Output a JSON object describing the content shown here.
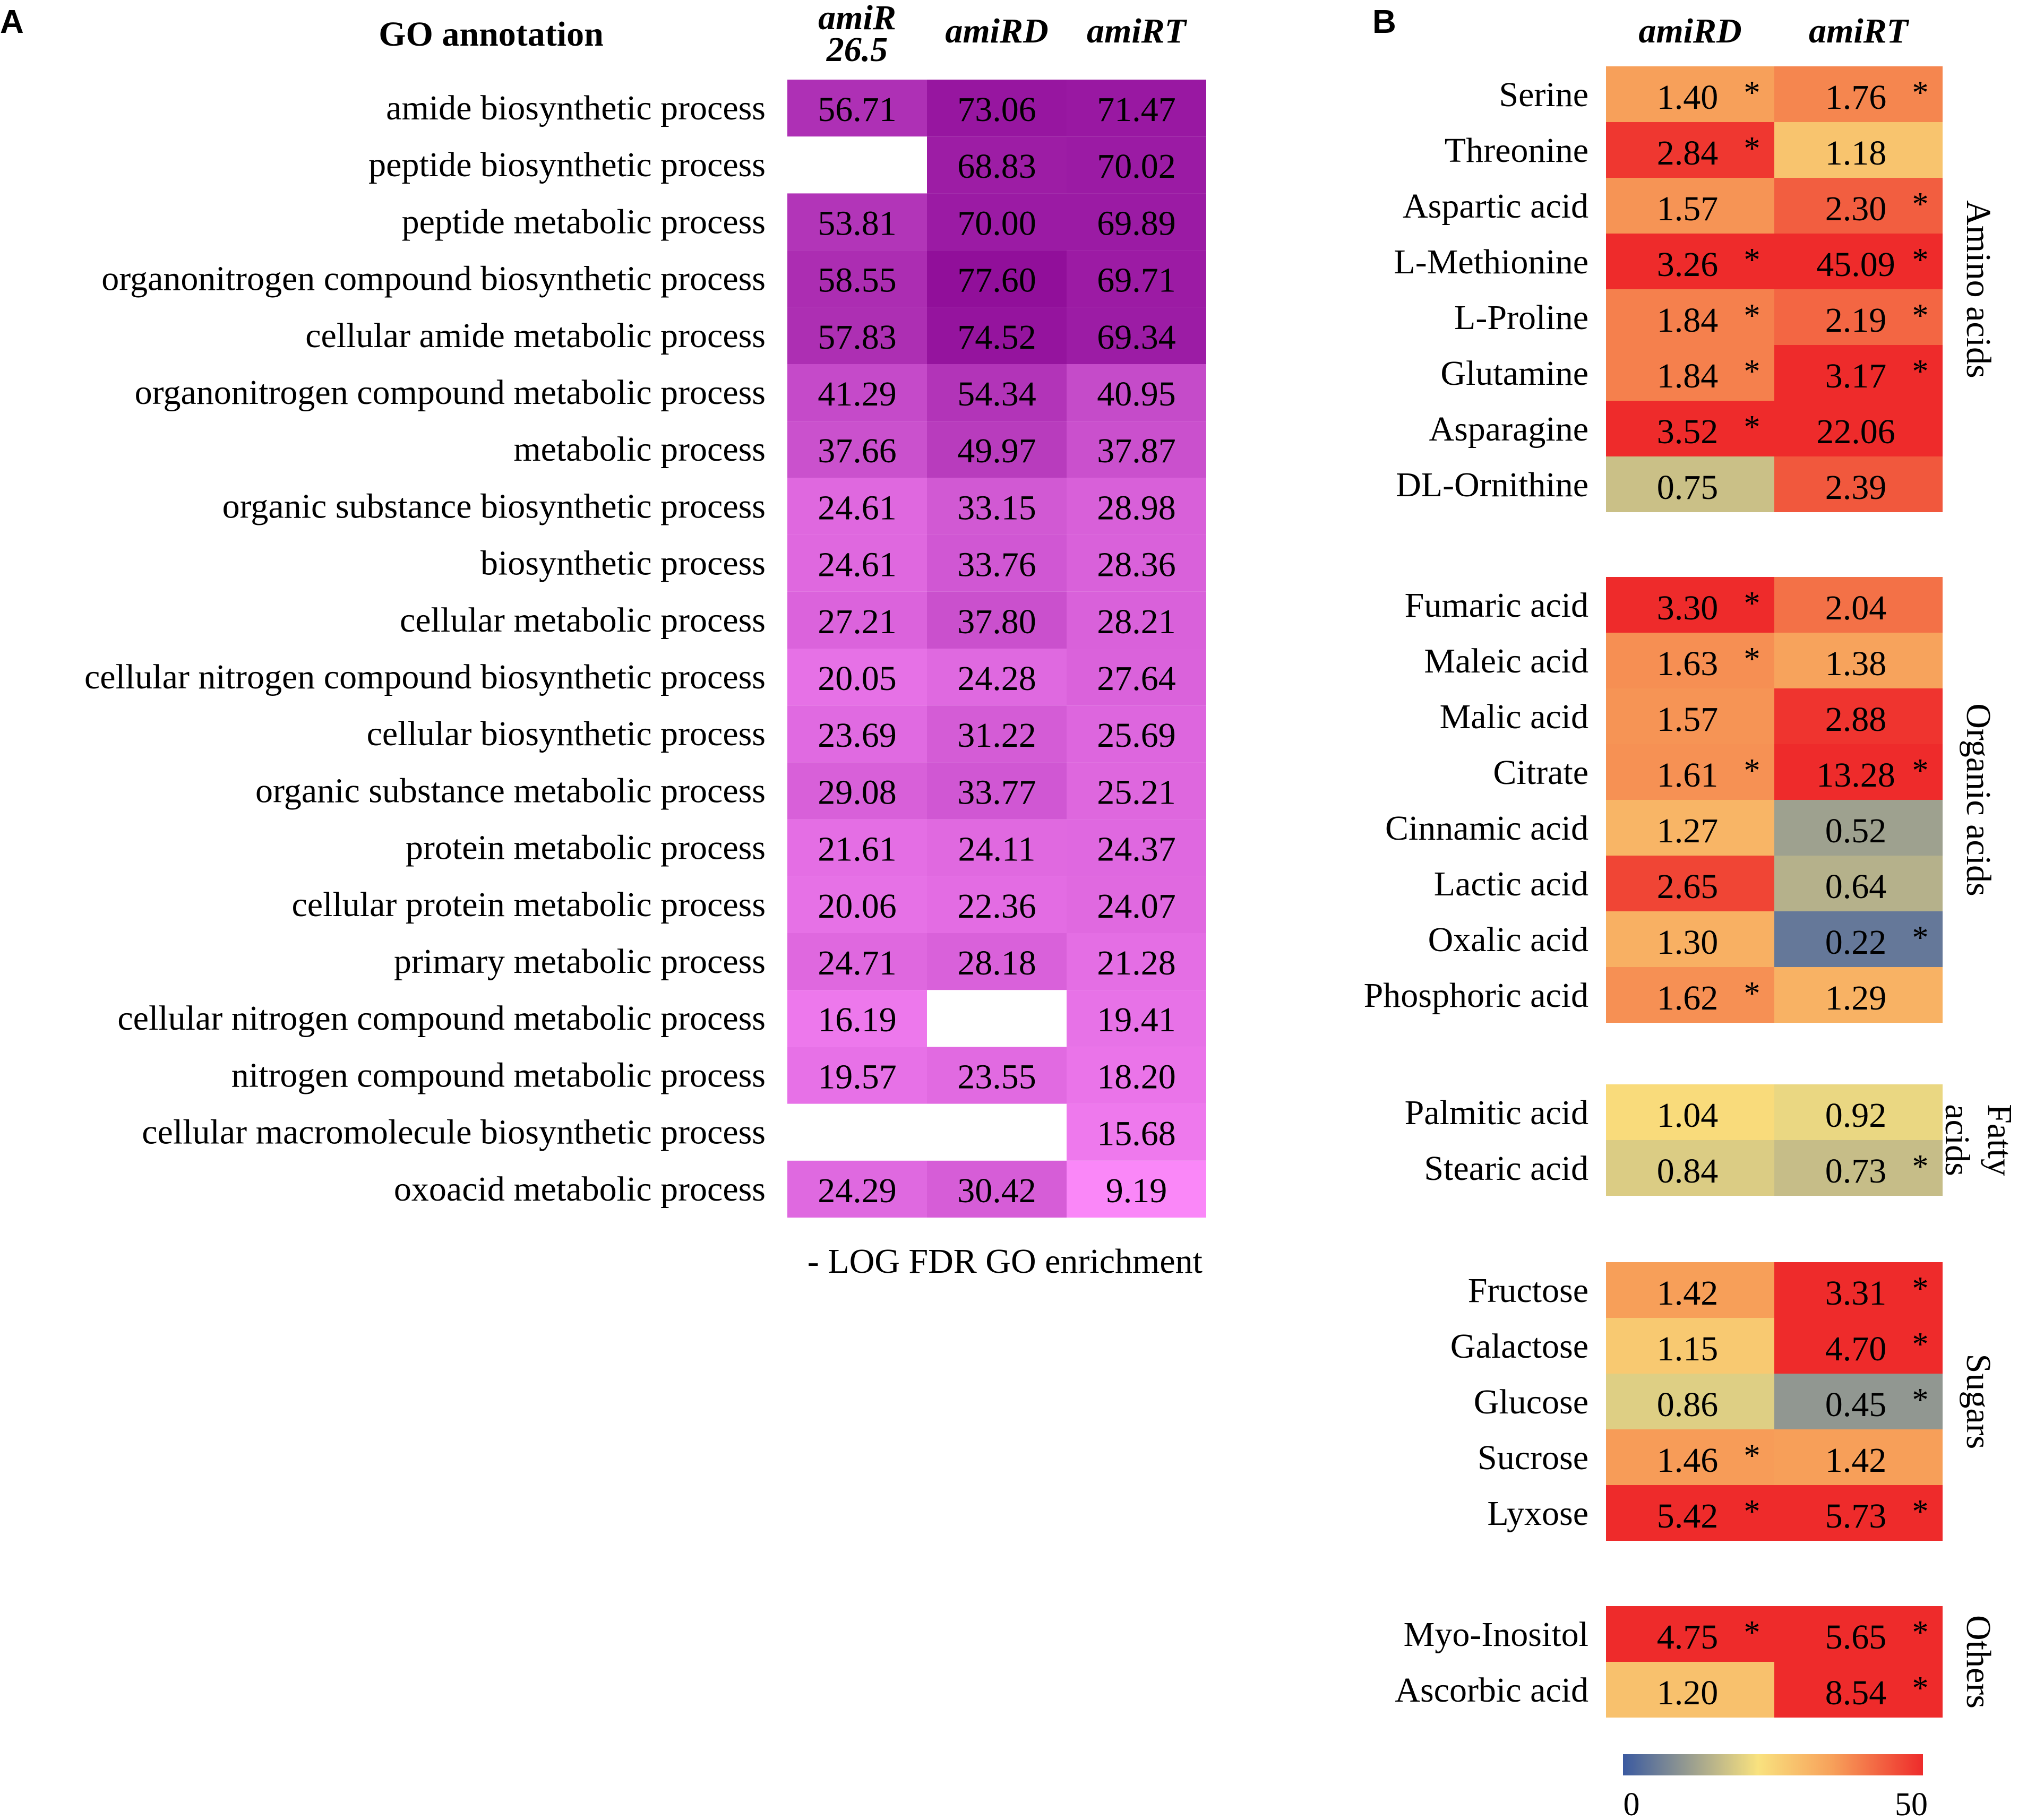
{
  "chart_data": [
    {
      "panel": "A",
      "type": "heatmap",
      "title": "GO annotation",
      "columns": [
        "amiR 26.5",
        "amiRD",
        "amiRT"
      ],
      "column_labels": [
        [
          "amiR",
          "26.5"
        ],
        [
          "amiRD"
        ],
        [
          "amiRT"
        ]
      ],
      "xlabel": "- LOG FDR GO enrichment",
      "rows": [
        {
          "label": "amide biosynthetic process",
          "values": [
            "56.71",
            "73.06",
            "71.47"
          ]
        },
        {
          "label": "peptide biosynthetic process",
          "values": [
            null,
            "68.83",
            "70.02"
          ]
        },
        {
          "label": "peptide metabolic process",
          "values": [
            "53.81",
            "70.00",
            "69.89"
          ]
        },
        {
          "label": "organonitrogen compound biosynthetic process",
          "values": [
            "58.55",
            "77.60",
            "69.71"
          ]
        },
        {
          "label": "cellular amide metabolic process",
          "values": [
            "57.83",
            "74.52",
            "69.34"
          ]
        },
        {
          "label": "organonitrogen compound metabolic process",
          "values": [
            "41.29",
            "54.34",
            "40.95"
          ]
        },
        {
          "label": "metabolic process",
          "values": [
            "37.66",
            "49.97",
            "37.87"
          ]
        },
        {
          "label": "organic substance biosynthetic process",
          "values": [
            "24.61",
            "33.15",
            "28.98"
          ]
        },
        {
          "label": "biosynthetic process",
          "values": [
            "24.61",
            "33.76",
            "28.36"
          ]
        },
        {
          "label": "cellular metabolic process",
          "values": [
            "27.21",
            "37.80",
            "28.21"
          ]
        },
        {
          "label": "cellular nitrogen compound biosynthetic process",
          "values": [
            "20.05",
            "24.28",
            "27.64"
          ]
        },
        {
          "label": "cellular biosynthetic process",
          "values": [
            "23.69",
            "31.22",
            "25.69"
          ]
        },
        {
          "label": "organic substance metabolic process",
          "values": [
            "29.08",
            "33.77",
            "25.21"
          ]
        },
        {
          "label": "protein metabolic process",
          "values": [
            "21.61",
            "24.11",
            "24.37"
          ]
        },
        {
          "label": "cellular protein metabolic process",
          "values": [
            "20.06",
            "22.36",
            "24.07"
          ]
        },
        {
          "label": "primary metabolic process",
          "values": [
            "24.71",
            "28.18",
            "21.28"
          ]
        },
        {
          "label": "cellular nitrogen compound metabolic process",
          "values": [
            "16.19",
            null,
            "19.41"
          ]
        },
        {
          "label": "nitrogen compound metabolic process",
          "values": [
            "19.57",
            "23.55",
            "18.20"
          ]
        },
        {
          "label": "cellular macromolecule biosynthetic process",
          "values": [
            null,
            null,
            "15.68"
          ]
        },
        {
          "label": "oxoacid metabolic process",
          "values": [
            "24.29",
            "30.42",
            "9.19"
          ]
        }
      ]
    },
    {
      "panel": "B",
      "type": "heatmap",
      "columns": [
        "amiRD",
        "amiRT"
      ],
      "colorbar": {
        "min": "0",
        "max": "50",
        "colors": [
          "#3b5aa0",
          "#f9e27f",
          "#f7a05a",
          "#ee2b2b"
        ]
      },
      "groups": [
        {
          "name": "Amino acids",
          "name_lines": [
            "Amino acids"
          ],
          "rows": [
            {
              "label": "Serine",
              "values": [
                "1.40",
                "1.76"
              ],
              "sig": [
                true,
                true
              ]
            },
            {
              "label": "Threonine",
              "values": [
                "2.84",
                "1.18"
              ],
              "sig": [
                true,
                false
              ]
            },
            {
              "label": "Aspartic acid",
              "values": [
                "1.57",
                "2.30"
              ],
              "sig": [
                false,
                true
              ]
            },
            {
              "label": "L-Methionine",
              "values": [
                "3.26",
                "45.09"
              ],
              "sig": [
                true,
                true
              ]
            },
            {
              "label": "L-Proline",
              "values": [
                "1.84",
                "2.19"
              ],
              "sig": [
                true,
                true
              ]
            },
            {
              "label": "Glutamine",
              "values": [
                "1.84",
                "3.17"
              ],
              "sig": [
                true,
                true
              ]
            },
            {
              "label": "Asparagine",
              "values": [
                "3.52",
                "22.06"
              ],
              "sig": [
                true,
                false
              ]
            },
            {
              "label": "DL-Ornithine",
              "values": [
                "0.75",
                "2.39"
              ],
              "sig": [
                false,
                false
              ]
            }
          ]
        },
        {
          "name": "Organic acids",
          "name_lines": [
            "Organic acids"
          ],
          "rows": [
            {
              "label": "Fumaric acid",
              "values": [
                "3.30",
                "2.04"
              ],
              "sig": [
                true,
                false
              ]
            },
            {
              "label": "Maleic acid",
              "values": [
                "1.63",
                "1.38"
              ],
              "sig": [
                true,
                false
              ]
            },
            {
              "label": "Malic acid",
              "values": [
                "1.57",
                "2.88"
              ],
              "sig": [
                false,
                false
              ]
            },
            {
              "label": "Citrate",
              "values": [
                "1.61",
                "13.28"
              ],
              "sig": [
                true,
                true
              ]
            },
            {
              "label": "Cinnamic acid",
              "values": [
                "1.27",
                "0.52"
              ],
              "sig": [
                false,
                false
              ]
            },
            {
              "label": "Lactic acid",
              "values": [
                "2.65",
                "0.64"
              ],
              "sig": [
                false,
                false
              ]
            },
            {
              "label": "Oxalic acid",
              "values": [
                "1.30",
                "0.22"
              ],
              "sig": [
                false,
                true
              ]
            },
            {
              "label": "Phosphoric acid",
              "values": [
                "1.62",
                "1.29"
              ],
              "sig": [
                true,
                false
              ]
            }
          ]
        },
        {
          "name": "Fatty acids",
          "name_lines": [
            "Fatty",
            "acids"
          ],
          "rows": [
            {
              "label": "Palmitic acid",
              "values": [
                "1.04",
                "0.92"
              ],
              "sig": [
                false,
                false
              ]
            },
            {
              "label": "Stearic acid",
              "values": [
                "0.84",
                "0.73"
              ],
              "sig": [
                false,
                true
              ]
            }
          ]
        },
        {
          "name": "Sugars",
          "name_lines": [
            "Sugars"
          ],
          "rows": [
            {
              "label": "Fructose",
              "values": [
                "1.42",
                "3.31"
              ],
              "sig": [
                false,
                true
              ]
            },
            {
              "label": "Galactose",
              "values": [
                "1.15",
                "4.70"
              ],
              "sig": [
                false,
                true
              ]
            },
            {
              "label": "Glucose",
              "values": [
                "0.86",
                "0.45"
              ],
              "sig": [
                false,
                true
              ]
            },
            {
              "label": "Sucrose",
              "values": [
                "1.46",
                "1.42"
              ],
              "sig": [
                true,
                false
              ]
            },
            {
              "label": "Lyxose",
              "values": [
                "5.42",
                "5.73"
              ],
              "sig": [
                true,
                true
              ]
            }
          ]
        },
        {
          "name": "Others",
          "name_lines": [
            "Others"
          ],
          "rows": [
            {
              "label": "Myo-Inositol",
              "values": [
                "4.75",
                "5.65"
              ],
              "sig": [
                true,
                true
              ]
            },
            {
              "label": "Ascorbic acid",
              "values": [
                "1.20",
                "8.54"
              ],
              "sig": [
                false,
                true
              ]
            }
          ]
        }
      ]
    }
  ],
  "panel_labels": [
    "A",
    "B"
  ],
  "sig_marker": "*"
}
